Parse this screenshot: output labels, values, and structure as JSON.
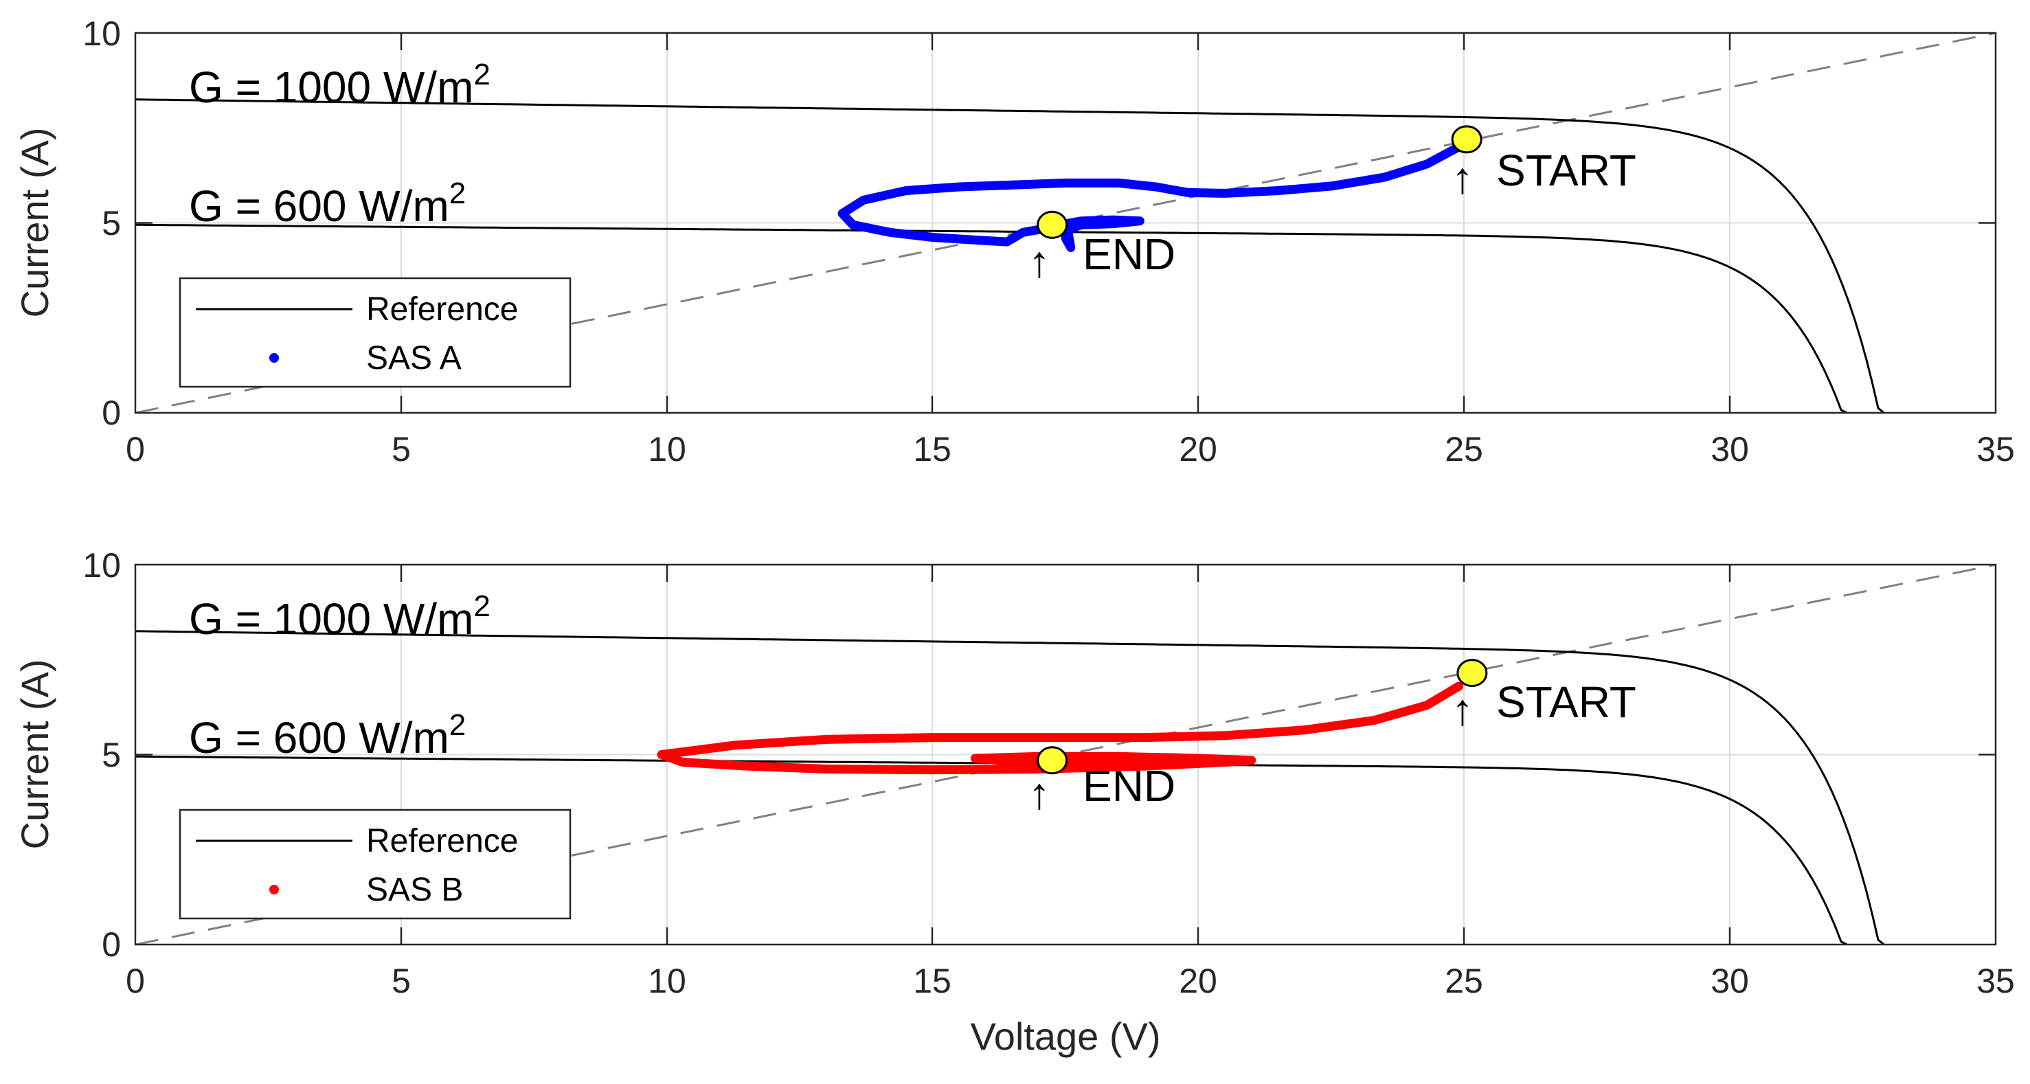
{
  "chart_data": [
    {
      "type": "line",
      "panel": "top",
      "xlabel": "",
      "ylabel": "Current (A)",
      "xlim": [
        0,
        35
      ],
      "ylim": [
        0,
        10
      ],
      "xticks": [
        "0",
        "5",
        "10",
        "15",
        "20",
        "25",
        "30",
        "35"
      ],
      "yticks": [
        "0",
        "5",
        "10"
      ],
      "grid": true,
      "legend": {
        "position": "bottom-left",
        "entries": [
          "Reference",
          "SAS A"
        ]
      },
      "annotations": {
        "g1000": {
          "prefix": "G = 1000 W/m",
          "sup": "2"
        },
        "g600": {
          "prefix": "G = 600 W/m",
          "sup": "2"
        },
        "start": "START",
        "end": "END",
        "arrow": "↑"
      },
      "reference_curves": [
        {
          "name": "G = 1000 W/m2",
          "isc": 8.25,
          "voc": 32.9
        },
        {
          "name": "G = 600 W/m2",
          "isc": 4.95,
          "voc": 32.2
        }
      ],
      "load_line": {
        "from": [
          0,
          0
        ],
        "to": [
          35,
          10
        ]
      },
      "start_point": [
        25.05,
        7.2
      ],
      "end_point": [
        17.25,
        4.95
      ],
      "trajectory": {
        "name": "SAS A",
        "color": "#0000ff",
        "points": [
          [
            24.9,
            7.0
          ],
          [
            24.3,
            6.55
          ],
          [
            23.5,
            6.2
          ],
          [
            22.5,
            5.97
          ],
          [
            21.5,
            5.85
          ],
          [
            20.5,
            5.78
          ],
          [
            19.8,
            5.8
          ],
          [
            19.2,
            5.95
          ],
          [
            18.5,
            6.05
          ],
          [
            17.5,
            6.05
          ],
          [
            16.5,
            6.0
          ],
          [
            15.5,
            5.95
          ],
          [
            14.5,
            5.85
          ],
          [
            13.7,
            5.6
          ],
          [
            13.3,
            5.25
          ],
          [
            13.5,
            4.95
          ],
          [
            14.2,
            4.75
          ],
          [
            15.0,
            4.62
          ],
          [
            15.8,
            4.55
          ],
          [
            16.4,
            4.5
          ],
          [
            16.7,
            4.75
          ],
          [
            17.1,
            4.85
          ],
          [
            17.4,
            4.95
          ],
          [
            17.8,
            5.05
          ],
          [
            18.4,
            5.08
          ],
          [
            18.9,
            5.05
          ],
          [
            18.4,
            4.98
          ],
          [
            17.8,
            4.95
          ],
          [
            17.6,
            4.85
          ],
          [
            17.5,
            4.6
          ],
          [
            17.6,
            4.35
          ],
          [
            17.55,
            4.75
          ],
          [
            17.3,
            4.95
          ]
        ]
      }
    },
    {
      "type": "line",
      "panel": "bottom",
      "xlabel": "Voltage (V)",
      "ylabel": "Current (A)",
      "xlim": [
        0,
        35
      ],
      "ylim": [
        0,
        10
      ],
      "xticks": [
        "0",
        "5",
        "10",
        "15",
        "20",
        "25",
        "30",
        "35"
      ],
      "yticks": [
        "0",
        "5",
        "10"
      ],
      "grid": true,
      "legend": {
        "position": "bottom-left",
        "entries": [
          "Reference",
          "SAS B"
        ]
      },
      "annotations": {
        "g1000": {
          "prefix": "G = 1000 W/m",
          "sup": "2"
        },
        "g600": {
          "prefix": "G = 600 W/m",
          "sup": "2"
        },
        "start": "START",
        "end": "END",
        "arrow": "↑"
      },
      "reference_curves": [
        {
          "name": "G = 1000 W/m2",
          "isc": 8.25,
          "voc": 32.9
        },
        {
          "name": "G = 600 W/m2",
          "isc": 4.95,
          "voc": 32.2
        }
      ],
      "load_line": {
        "from": [
          0,
          0
        ],
        "to": [
          35,
          10
        ]
      },
      "start_point": [
        25.15,
        7.15
      ],
      "end_point": [
        17.25,
        4.85
      ],
      "trajectory": {
        "name": "SAS B",
        "color": "#ff0000",
        "points": [
          [
            24.9,
            6.8
          ],
          [
            24.3,
            6.3
          ],
          [
            23.3,
            5.9
          ],
          [
            22.0,
            5.65
          ],
          [
            20.5,
            5.5
          ],
          [
            19.0,
            5.45
          ],
          [
            17.0,
            5.45
          ],
          [
            15.0,
            5.45
          ],
          [
            13.0,
            5.4
          ],
          [
            11.3,
            5.25
          ],
          [
            9.9,
            5.0
          ],
          [
            10.3,
            4.8
          ],
          [
            11.5,
            4.7
          ],
          [
            13.0,
            4.62
          ],
          [
            15.0,
            4.6
          ],
          [
            17.0,
            4.62
          ],
          [
            19.0,
            4.7
          ],
          [
            20.5,
            4.8
          ],
          [
            21.0,
            4.85
          ],
          [
            20.0,
            4.9
          ],
          [
            18.5,
            4.95
          ],
          [
            17.0,
            4.95
          ],
          [
            15.8,
            4.9
          ],
          [
            16.5,
            4.82
          ],
          [
            18.0,
            4.8
          ],
          [
            19.5,
            4.8
          ],
          [
            20.8,
            4.85
          ],
          [
            19.5,
            4.92
          ],
          [
            18.0,
            4.9
          ],
          [
            17.25,
            4.85
          ]
        ]
      }
    }
  ]
}
